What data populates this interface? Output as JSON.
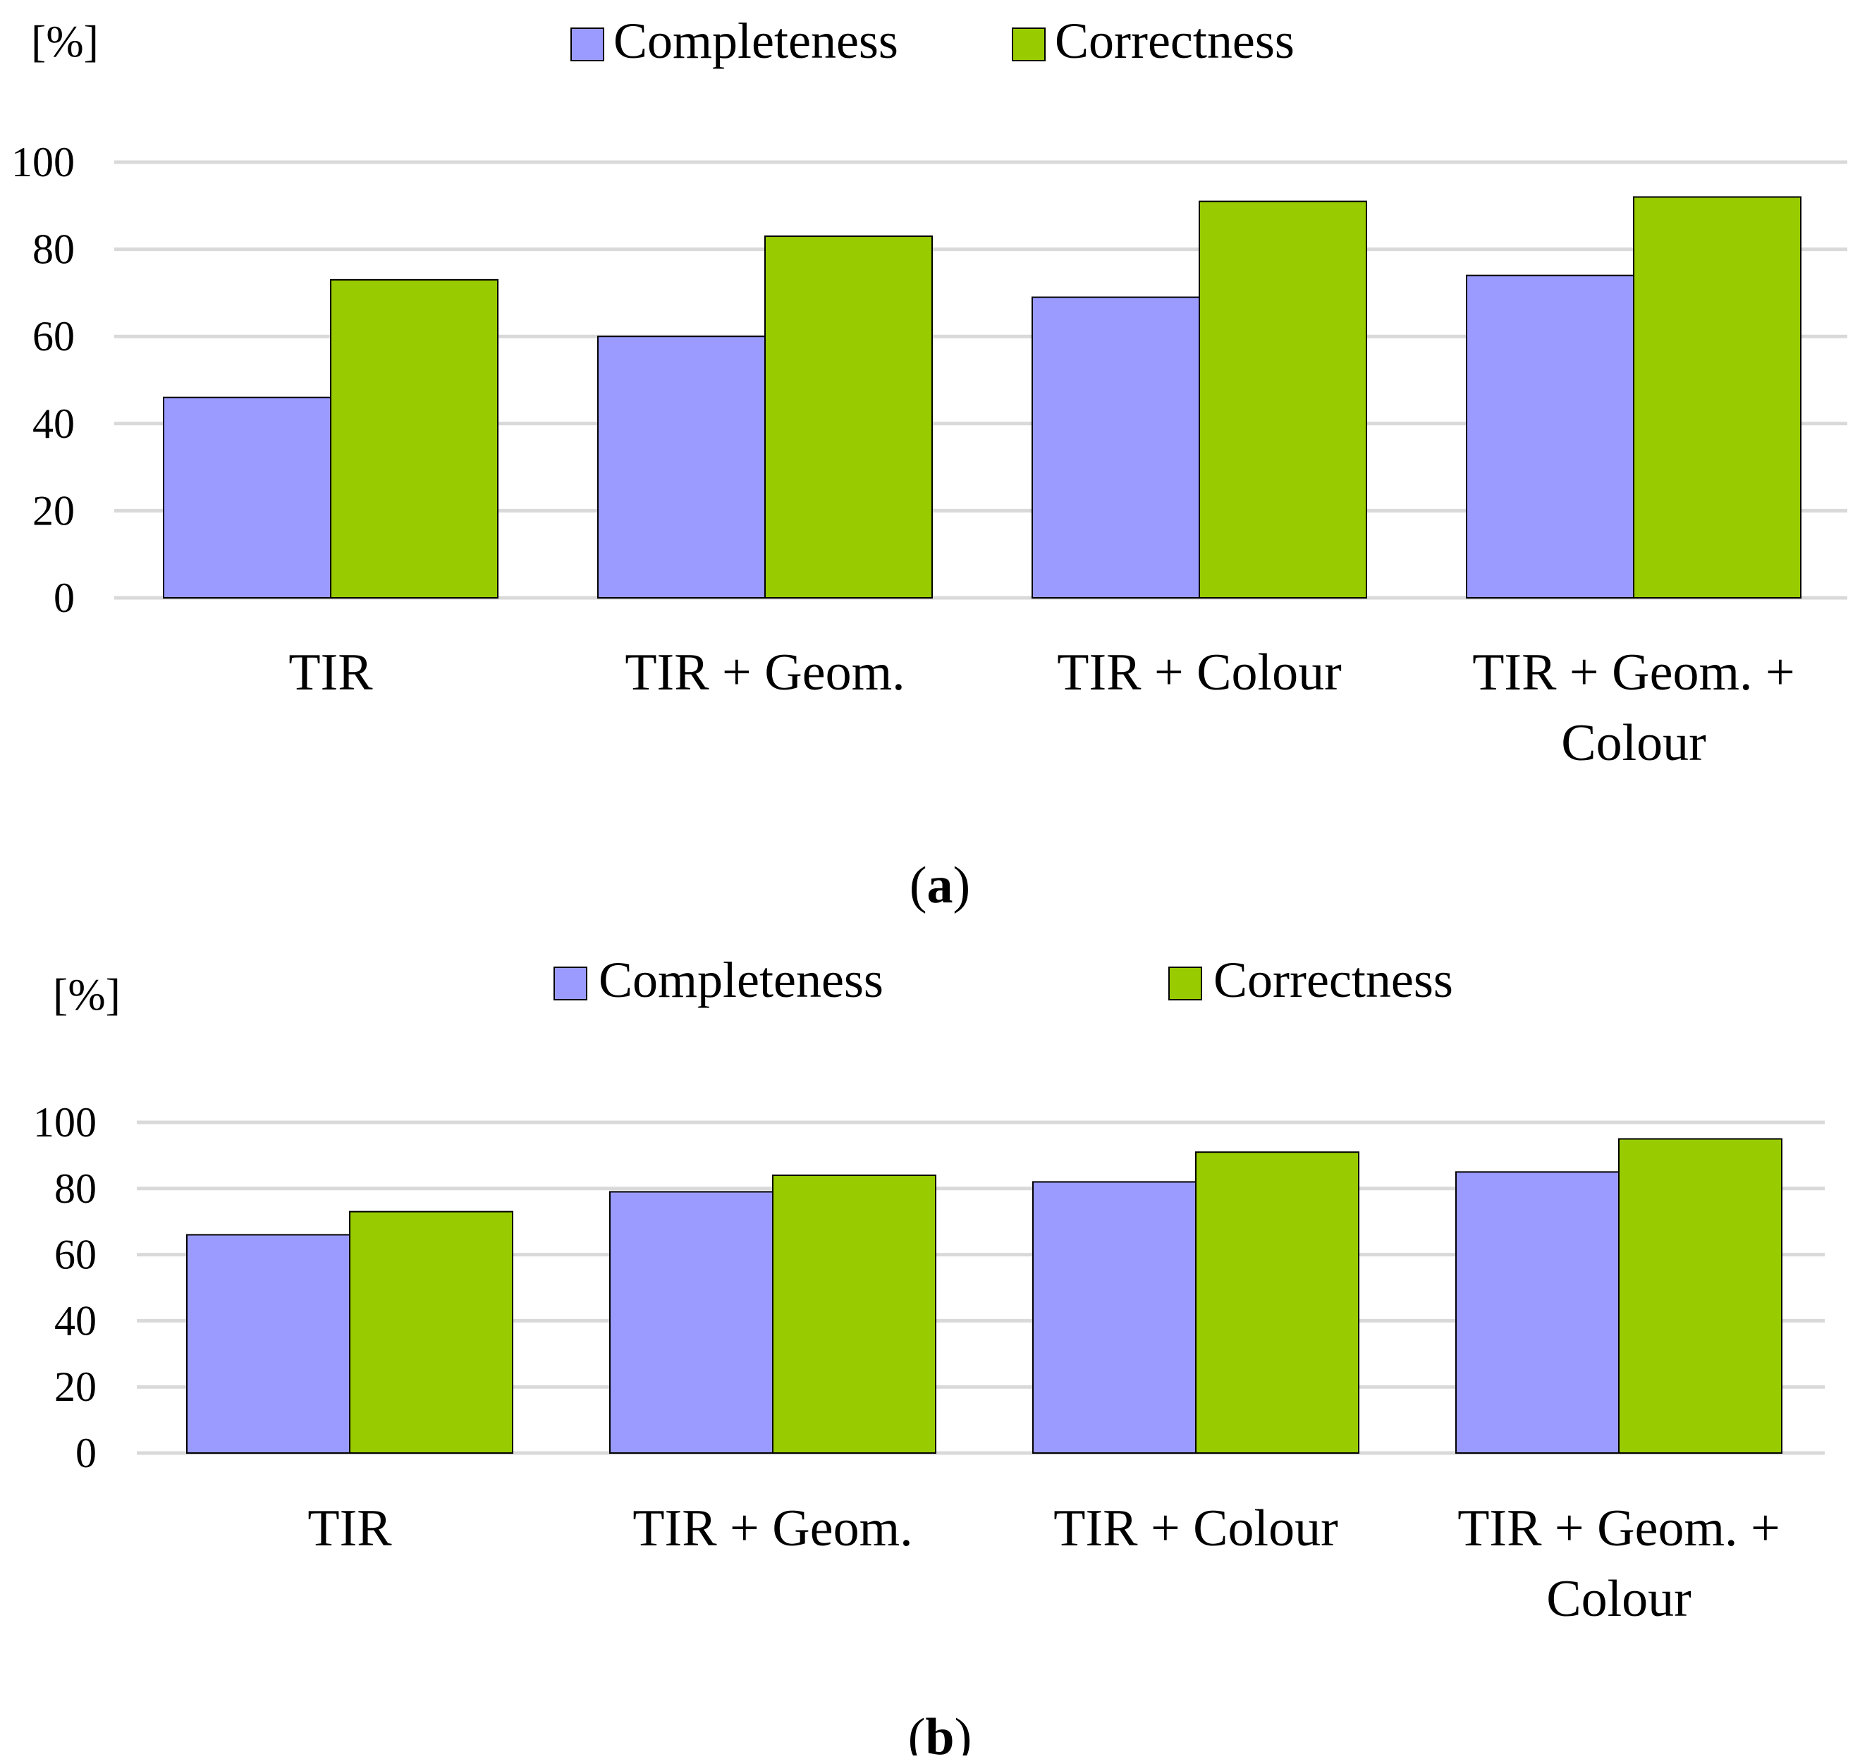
{
  "colors": {
    "completeness": "#9b9bff",
    "correctness": "#99cc00",
    "grid": "#d9d9d9",
    "bar_stroke": "#000000"
  },
  "chart_data": [
    {
      "type": "bar",
      "unit_label": "[%]",
      "categories": [
        [
          "TIR"
        ],
        [
          "TIR + Geom."
        ],
        [
          "TIR + Colour"
        ],
        [
          "TIR + Geom. +",
          "Colour"
        ]
      ],
      "series": [
        {
          "name": "Completeness",
          "color_key": "completeness",
          "values": [
            46,
            60,
            69,
            74
          ]
        },
        {
          "name": "Correctness",
          "color_key": "correctness",
          "values": [
            73,
            83,
            91,
            92
          ]
        }
      ],
      "yticks": [
        "0",
        "20",
        "40",
        "60",
        "80",
        "100"
      ],
      "ylim": [
        0,
        100
      ],
      "grid": true,
      "legend": "top-center",
      "caption": {
        "open": "(",
        "letter": "a",
        "close": ")"
      }
    },
    {
      "type": "bar",
      "unit_label": "[%]",
      "categories": [
        [
          "TIR"
        ],
        [
          "TIR + Geom."
        ],
        [
          "TIR + Colour"
        ],
        [
          "TIR + Geom. +",
          "Colour"
        ]
      ],
      "series": [
        {
          "name": "Completeness",
          "color_key": "completeness",
          "values": [
            66,
            79,
            82,
            85
          ]
        },
        {
          "name": "Correctness",
          "color_key": "correctness",
          "values": [
            73,
            84,
            91,
            95
          ]
        }
      ],
      "yticks": [
        "0",
        "20",
        "40",
        "60",
        "80",
        "100"
      ],
      "ylim": [
        0,
        100
      ],
      "grid": true,
      "legend": "top-center",
      "caption": {
        "open": "(",
        "letter": "b",
        "close": ")"
      }
    }
  ]
}
